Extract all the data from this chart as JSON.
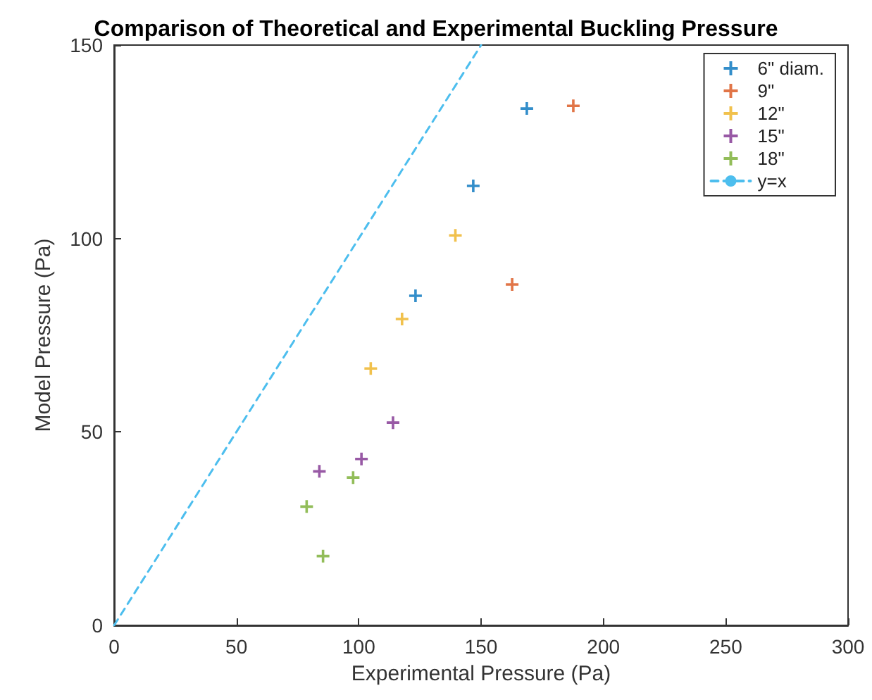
{
  "chart_data": {
    "type": "scatter",
    "title": "Comparison of Theoretical and Experimental Buckling Pressure",
    "xlabel": "Experimental Pressure (Pa)",
    "ylabel": "Model Pressure (Pa)",
    "xlim": [
      0,
      300
    ],
    "xticks": [
      0,
      50,
      100,
      150,
      200,
      250,
      300
    ],
    "ylim": [
      0,
      150
    ],
    "yticks": [
      0,
      50,
      100,
      150
    ],
    "grid": false,
    "legend": "top right",
    "marker": "cross",
    "series": [
      {
        "name": "6\" diam.",
        "color": "#0072bd",
        "x": [
          168.7,
          146.8,
          123.2
        ],
        "values": [
          133.6,
          113.6,
          85.2
        ]
      },
      {
        "name": "9\"",
        "color": "#d95319",
        "x": [
          187.7,
          162.7
        ],
        "values": [
          134.3,
          88.1
        ]
      },
      {
        "name": "12\"",
        "color": "#edb120",
        "x": [
          139.5,
          117.7,
          104.9
        ],
        "values": [
          100.8,
          79.2,
          66.4
        ]
      },
      {
        "name": "15\"",
        "color": "#7e2f8e",
        "x": [
          114.0,
          101.1,
          83.9
        ],
        "values": [
          52.4,
          43.0,
          39.8
        ]
      },
      {
        "name": "18\"",
        "color": "#77ac30",
        "x": [
          78.7,
          97.7,
          85.4
        ],
        "values": [
          30.7,
          38.2,
          17.9
        ]
      },
      {
        "name": "y=x",
        "type": "line",
        "color": "#4dbeee",
        "marker": "none",
        "line_style": "dashed",
        "x": [
          0,
          150
        ],
        "values": [
          0,
          150
        ]
      }
    ]
  }
}
